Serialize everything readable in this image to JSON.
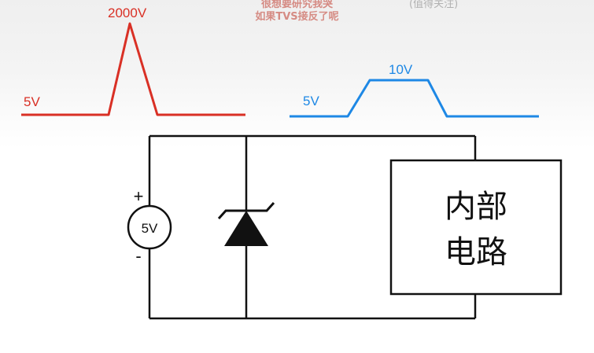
{
  "captions": {
    "line1": "很想要研究我哭",
    "line2": "如果TVS接反了呢",
    "right": "(值得关注)"
  },
  "waveforms": {
    "surge": {
      "baseline_label": "5V",
      "peak_label": "2000V",
      "color": "#d93025"
    },
    "clamped": {
      "baseline_label": "5V",
      "peak_label": "10V",
      "color": "#1e88e5"
    }
  },
  "circuit": {
    "source_label": "5V",
    "plus_label": "+",
    "minus_label": "-",
    "load_line1": "内部",
    "load_line2": "电路",
    "wire_color": "#111111"
  }
}
